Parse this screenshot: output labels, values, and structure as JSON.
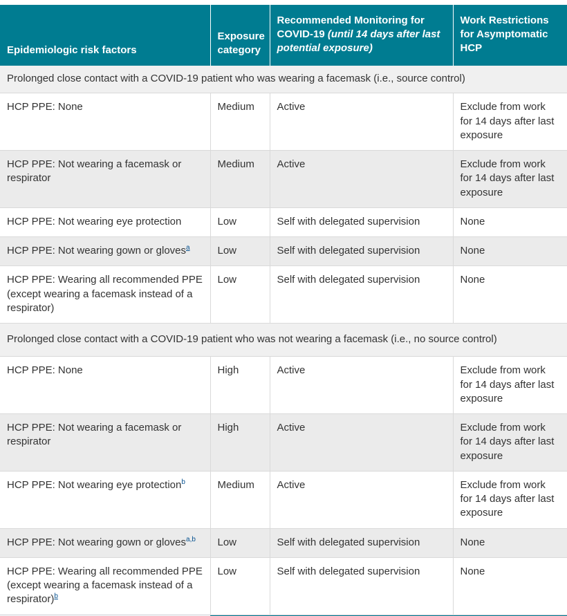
{
  "theme": {
    "teal_header": "#007C91",
    "footnote_link_blue": "#075290",
    "stripe_gray": "#ebebeb",
    "section_gray": "#f0f0f0",
    "border_gray": "#d9d9d9",
    "body_text": "#333333"
  },
  "table": {
    "headers": [
      {
        "label": "Epidemiologic risk factors"
      },
      {
        "label": "Exposure category"
      },
      {
        "label_main": "Recommended Monitoring for COVID-19 ",
        "label_italic": "(until 14 days after last potential exposure)"
      },
      {
        "label": "Work Restrictions for Asymptomatic HCP"
      }
    ],
    "sections": [
      {
        "title": "Prolonged close contact with a COVID-19 patient who was wearing a facemask (i.e., source control)",
        "rows": [
          {
            "risk": "HCP PPE: None",
            "sup": "",
            "sup_underlined": false,
            "category": "Medium",
            "monitoring": "Active",
            "restrictions": "Exclude from work for 14 days after last exposure"
          },
          {
            "risk": "HCP PPE: Not wearing a facemask or respirator",
            "sup": "",
            "sup_underlined": false,
            "category": "Medium",
            "monitoring": "Active",
            "restrictions": "Exclude from work for 14 days after last exposure"
          },
          {
            "risk": "HCP PPE: Not wearing eye protection",
            "sup": "",
            "sup_underlined": false,
            "category": "Low",
            "monitoring": "Self with delegated supervision",
            "restrictions": "None"
          },
          {
            "risk": "HCP PPE: Not wearing gown or gloves",
            "sup": "a",
            "sup_underlined": true,
            "category": "Low",
            "monitoring": "Self with delegated supervision",
            "restrictions": "None"
          },
          {
            "risk": "HCP PPE: Wearing all recommended PPE (except wearing a facemask instead of a respirator)",
            "sup": "",
            "sup_underlined": false,
            "category": "Low",
            "monitoring": "Self with delegated supervision",
            "restrictions": "None"
          }
        ]
      },
      {
        "title": "Prolonged close contact with a COVID-19 patient who was not wearing a facemask (i.e., no source control)",
        "rows": [
          {
            "risk": "HCP PPE: None",
            "sup": "",
            "sup_underlined": false,
            "category": "High",
            "monitoring": "Active",
            "restrictions": "Exclude from work for 14 days after last exposure"
          },
          {
            "risk": "HCP PPE: Not wearing a facemask or respirator",
            "sup": "",
            "sup_underlined": false,
            "category": "High",
            "monitoring": "Active",
            "restrictions": "Exclude from work for 14 days after last exposure"
          },
          {
            "risk": "HCP PPE: Not wearing eye protection",
            "sup": "b",
            "sup_underlined": false,
            "category": "Medium",
            "monitoring": "Active",
            "restrictions": "Exclude from work for 14 days after last exposure"
          },
          {
            "risk": "HCP PPE: Not wearing gown or gloves",
            "sup": "a,b",
            "sup_underlined": false,
            "category": "Low",
            "monitoring": "Self with delegated supervision",
            "restrictions": "None"
          },
          {
            "risk": "HCP PPE: Wearing all recommended PPE (except wearing a facemask instead of a respirator)",
            "sup": "b",
            "sup_underlined": true,
            "category": "Low",
            "monitoring": "Self with delegated supervision",
            "restrictions": "None"
          }
        ]
      }
    ]
  }
}
